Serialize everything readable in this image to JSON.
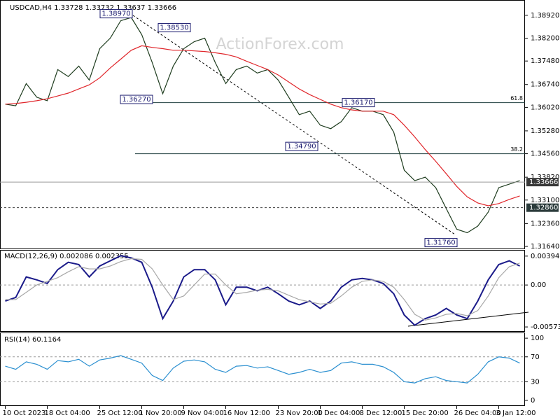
{
  "chart_data": [
    {
      "type": "line",
      "title": "USDCAD,H4  1.33728 1.33732 1.33637 1.33666",
      "watermark": "ActionForex.com",
      "categories": [
        "10 Oct 2023",
        null,
        null,
        null,
        "18 Oct 04:00",
        null,
        null,
        null,
        null,
        "25 Oct 12:00",
        null,
        null,
        null,
        "1 Nov 20:00",
        null,
        null,
        null,
        "9 Nov 04:00",
        null,
        null,
        null,
        "16 Nov 12:00",
        null,
        null,
        null,
        null,
        "23 Nov 20:00",
        null,
        null,
        null,
        "1 Dec 04:00",
        null,
        null,
        null,
        "8 Dec 12:00",
        null,
        null,
        null,
        "15 Dec 20:00",
        null,
        null,
        null,
        null,
        "26 Dec 04:00",
        null,
        null,
        null,
        "3 Jan 12:00",
        null,
        null
      ],
      "series": [
        {
          "color": "#1f3d1f",
          "values": [
            1.3612,
            1.3607,
            1.3677,
            1.3634,
            1.3623,
            1.3721,
            1.3699,
            1.3732,
            1.3688,
            1.3787,
            1.382,
            1.3875,
            1.3885,
            1.3831,
            1.3743,
            1.3645,
            1.3732,
            1.3787,
            1.3809,
            1.382,
            1.3743,
            1.3677,
            1.3721,
            1.3732,
            1.371,
            1.3721,
            1.3688,
            1.3634,
            1.3579,
            1.359,
            1.3546,
            1.3535,
            1.3557,
            1.3601,
            1.359,
            1.359,
            1.3579,
            1.3524,
            1.3404,
            1.3371,
            1.3382,
            1.3349,
            1.3283,
            1.3218,
            1.3207,
            1.3228,
            1.3272,
            1.3349,
            1.336,
            1.3371
          ]
        },
        {
          "color": "#e0262b",
          "values": [
            1.3612,
            1.3614,
            1.3618,
            1.3623,
            1.3629,
            1.3638,
            1.3647,
            1.366,
            1.3673,
            1.3695,
            1.3726,
            1.3754,
            1.3782,
            1.3796,
            1.3791,
            1.3787,
            1.3782,
            1.3782,
            1.378,
            1.3778,
            1.3774,
            1.3769,
            1.3761,
            1.3747,
            1.3734,
            1.3721,
            1.3704,
            1.3682,
            1.366,
            1.3642,
            1.3627,
            1.3612,
            1.3601,
            1.3594,
            1.359,
            1.359,
            1.359,
            1.3579,
            1.3546,
            1.3509,
            1.3469,
            1.3432,
            1.3393,
            1.3353,
            1.332,
            1.3301,
            1.3292,
            1.3299,
            1.3312,
            1.3323
          ]
        }
      ],
      "ylim": [
        1.31574,
        1.39292
      ],
      "yticks": [
        {
          "value": 1.3892,
          "label": "1.38920"
        },
        {
          "value": 1.382,
          "label": "1.38200"
        },
        {
          "value": 1.3748,
          "label": "1.37480"
        },
        {
          "value": 1.3674,
          "label": "1.36740"
        },
        {
          "value": 1.3602,
          "label": "1.36020"
        },
        {
          "value": 1.3528,
          "label": "1.35280"
        },
        {
          "value": 1.3456,
          "label": "1.34560"
        },
        {
          "value": 1.3382,
          "label": "1.33820"
        },
        {
          "value": 1.331,
          "label": "1.33100"
        },
        {
          "value": 1.3236,
          "label": "1.32360"
        },
        {
          "value": 1.3164,
          "label": "1.31640"
        }
      ],
      "annotations": [
        {
          "value": 1.3897,
          "label": "1.38970"
        },
        {
          "value": 1.3853,
          "label": "1.38530"
        },
        {
          "value": 1.3627,
          "label": "1.36270"
        },
        {
          "value": 1.3617,
          "label": "1.36170"
        },
        {
          "value": 1.3479,
          "label": "1.34790"
        },
        {
          "value": 1.3176,
          "label": "1.31760"
        }
      ],
      "fib_levels": [
        {
          "ratio": 61.8,
          "price": 1.3617
        },
        {
          "ratio": 38.2,
          "price": 1.3456
        }
      ],
      "price_lines": [
        {
          "value": 1.33666,
          "label": "1.33666",
          "color": "#9a9a9a",
          "dashed": false
        },
        {
          "value": 1.3286,
          "label": "1.32860",
          "color": "#404040",
          "dashed": true
        }
      ]
    },
    {
      "type": "line",
      "title": "MACD(12,26,9) 0.002086 0.002355",
      "series": [
        {
          "color": "#1b1b8a",
          "values": [
            -0.0022,
            -0.0017,
            0.0011,
            0.0007,
            0.0002,
            0.0021,
            0.0031,
            0.0028,
            0.0011,
            0.0026,
            0.0033,
            0.004,
            0.0037,
            0.0031,
            -0.0003,
            -0.0046,
            -0.0022,
            0.0011,
            0.0021,
            0.0021,
            0.0007,
            -0.0027,
            -0.0003,
            -0.0003,
            -0.0008,
            -0.0003,
            -0.0012,
            -0.0022,
            -0.0027,
            -0.0022,
            -0.0032,
            -0.0022,
            -0.0003,
            0.0007,
            0.0009,
            0.0007,
            0.0002,
            -0.0012,
            -0.0041,
            -0.0055,
            -0.0046,
            -0.0041,
            -0.0032,
            -0.0041,
            -0.0046,
            -0.0022,
            0.0007,
            0.0028,
            0.0033,
            0.0026
          ]
        },
        {
          "color": "#a8a8a8",
          "values": [
            -0.002,
            -0.002,
            -0.001,
            0,
            0.0005,
            0.001,
            0.0018,
            0.0025,
            0.0022,
            0.0022,
            0.0026,
            0.0032,
            0.0036,
            0.0035,
            0.0022,
            0,
            -0.002,
            -0.0015,
            0,
            0.0015,
            0.0015,
            0,
            -0.0012,
            -0.001,
            -0.0007,
            -0.0006,
            -0.0008,
            -0.0014,
            -0.002,
            -0.0023,
            -0.0026,
            -0.0025,
            -0.0015,
            -0.0003,
            0.0005,
            0.0007,
            0.0005,
            -0.0003,
            -0.002,
            -0.004,
            -0.0048,
            -0.0045,
            -0.004,
            -0.0039,
            -0.0042,
            -0.0035,
            -0.0015,
            0.001,
            0.0025,
            0.003
          ]
        }
      ],
      "ylim": [
        -0.0063,
        0.0047
      ],
      "yticks": [
        0.003948,
        {
          "value": 0,
          "label": "0.00"
        },
        -0.005733
      ],
      "levels": [
        0
      ]
    },
    {
      "type": "line",
      "title": "RSI(14) 60.1164",
      "series": [
        {
          "color": "#2a8fd0",
          "values": [
            55,
            50,
            62,
            58,
            50,
            64,
            62,
            66,
            55,
            65,
            68,
            72,
            66,
            60,
            40,
            32,
            52,
            63,
            65,
            62,
            50,
            45,
            55,
            56,
            52,
            54,
            48,
            42,
            45,
            50,
            45,
            48,
            60,
            62,
            58,
            58,
            54,
            45,
            30,
            28,
            35,
            38,
            32,
            30,
            28,
            42,
            62,
            70,
            68,
            60
          ]
        }
      ],
      "ylim": [
        -9,
        108
      ],
      "yticks": [
        100,
        70,
        30,
        0
      ],
      "levels": [
        70,
        30
      ]
    }
  ]
}
